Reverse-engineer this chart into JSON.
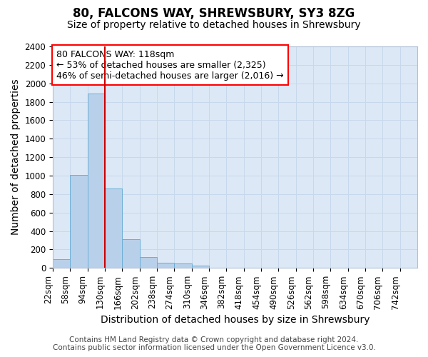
{
  "title": "80, FALCONS WAY, SHREWSBURY, SY3 8ZG",
  "subtitle": "Size of property relative to detached houses in Shrewsbury",
  "xlabel": "Distribution of detached houses by size in Shrewsbury",
  "ylabel": "Number of detached properties",
  "bar_labels": [
    "22sqm",
    "58sqm",
    "94sqm",
    "130sqm",
    "166sqm",
    "202sqm",
    "238sqm",
    "274sqm",
    "310sqm",
    "346sqm",
    "382sqm",
    "418sqm",
    "454sqm",
    "490sqm",
    "526sqm",
    "562sqm",
    "598sqm",
    "634sqm",
    "670sqm",
    "706sqm",
    "742sqm"
  ],
  "bar_values": [
    95,
    1010,
    1890,
    860,
    315,
    115,
    55,
    48,
    25,
    0,
    0,
    0,
    0,
    0,
    0,
    0,
    0,
    0,
    0,
    0,
    0
  ],
  "bar_color": "#b8d0ea",
  "bar_edge_color": "#6aaed6",
  "property_label": "80 FALCONS WAY: 118sqm",
  "annotation_line1": "← 53% of detached houses are smaller (2,325)",
  "annotation_line2": "46% of semi-detached houses are larger (2,016) →",
  "vline_pos": 3.0,
  "ylim": [
    0,
    2400
  ],
  "yticks": [
    0,
    200,
    400,
    600,
    800,
    1000,
    1200,
    1400,
    1600,
    1800,
    2000,
    2200,
    2400
  ],
  "footer_line1": "Contains HM Land Registry data © Crown copyright and database right 2024.",
  "footer_line2": "Contains public sector information licensed under the Open Government Licence v3.0.",
  "vline_color": "#cc0000",
  "grid_color": "#c8d8ec",
  "plot_bg_color": "#dce8f5",
  "title_fontsize": 12,
  "subtitle_fontsize": 10,
  "axis_label_fontsize": 10,
  "tick_fontsize": 8.5,
  "annotation_fontsize": 9,
  "footer_fontsize": 7.5
}
